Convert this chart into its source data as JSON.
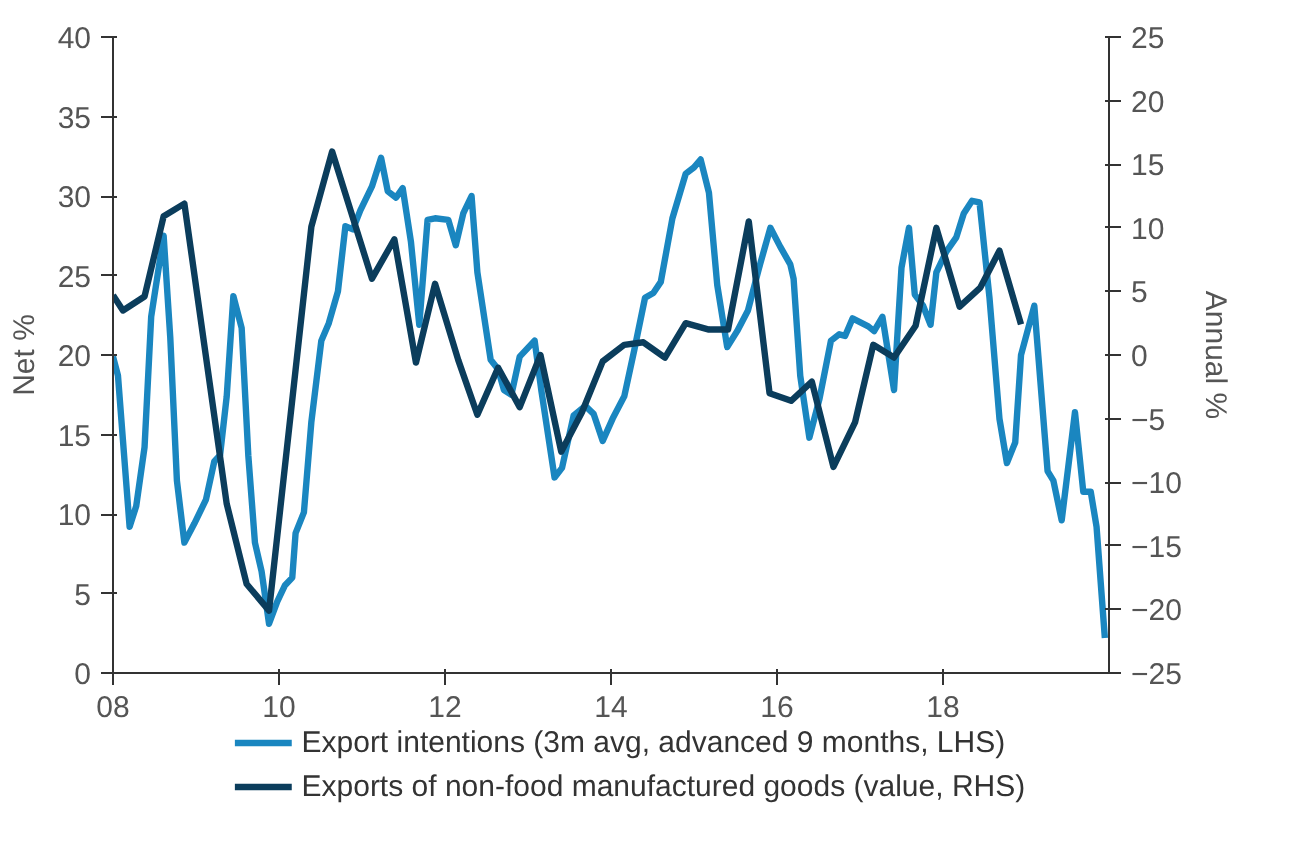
{
  "chart_data": {
    "type": "line",
    "xlabel": null,
    "ylabel": "Net %",
    "y2label": "Annual %",
    "xlim": [
      2008,
      2020
    ],
    "xticks": [
      {
        "value": 2008,
        "label": "08"
      },
      {
        "value": 2010,
        "label": "10"
      },
      {
        "value": 2012,
        "label": "12"
      },
      {
        "value": 2014,
        "label": "14"
      },
      {
        "value": 2016,
        "label": "16"
      },
      {
        "value": 2018,
        "label": "18"
      }
    ],
    "ylim": [
      0,
      40
    ],
    "yticks": [
      0,
      5,
      10,
      15,
      20,
      25,
      30,
      35,
      40
    ],
    "y2lim": [
      -25,
      25
    ],
    "y2ticks": [
      -25,
      -20,
      -15,
      -10,
      -5,
      0,
      5,
      10,
      15,
      20,
      25
    ],
    "grid": false,
    "legend": "bottom",
    "line_style": "solid",
    "marker": "none",
    "series": [
      {
        "name": "Export intentions (3m avg, advanced 9 months, LHS)",
        "color": "#1a86c0",
        "x": [
          2008.0,
          2008.06,
          2008.2,
          2008.28,
          2008.38,
          2008.46,
          2008.61,
          2008.69,
          2008.77,
          2008.86,
          2008.98,
          2009.12,
          2009.22,
          2009.29,
          2009.37,
          2009.45,
          2009.55,
          2009.63,
          2009.71,
          2009.79,
          2009.88,
          2009.98,
          2010.07,
          2010.16,
          2010.2,
          2010.3,
          2010.39,
          2010.51,
          2010.6,
          2010.71,
          2010.8,
          2010.89,
          2010.98,
          2011.12,
          2011.23,
          2011.31,
          2011.41,
          2011.49,
          2011.59,
          2011.69,
          2011.79,
          2011.88,
          2012.04,
          2012.13,
          2012.22,
          2012.32,
          2012.39,
          2012.55,
          2012.64,
          2012.71,
          2012.8,
          2012.9,
          2013.08,
          2013.16,
          2013.32,
          2013.41,
          2013.55,
          2013.69,
          2013.79,
          2013.9,
          2014.02,
          2014.16,
          2014.28,
          2014.41,
          2014.51,
          2014.6,
          2014.74,
          2014.9,
          2015.0,
          2015.08,
          2015.18,
          2015.28,
          2015.4,
          2015.52,
          2015.65,
          2015.78,
          2015.92,
          2016.04,
          2016.16,
          2016.2,
          2016.28,
          2016.39,
          2016.51,
          2016.65,
          2016.75,
          2016.82,
          2016.91,
          2017.1,
          2017.17,
          2017.27,
          2017.41,
          2017.5,
          2017.59,
          2017.66,
          2017.76,
          2017.85,
          2017.92,
          2018.04,
          2018.16,
          2018.25,
          2018.35,
          2018.44,
          2018.56,
          2018.68,
          2018.77,
          2018.87,
          2018.94,
          2019.1,
          2019.26,
          2019.33,
          2019.43,
          2019.59,
          2019.69,
          2019.78,
          2019.85,
          2019.95
        ],
        "values": [
          19.9,
          18.7,
          9.2,
          10.5,
          14.2,
          22.4,
          27.5,
          21.1,
          12.1,
          8.2,
          9.4,
          10.9,
          13.3,
          13.7,
          17.4,
          23.7,
          21.7,
          13.7,
          8.2,
          6.4,
          3.1,
          4.5,
          5.5,
          6,
          8.8,
          10.1,
          15.8,
          20.9,
          22,
          24,
          28.1,
          27.9,
          29.1,
          30.6,
          32.4,
          30.3,
          29.9,
          30.5,
          27.1,
          21.9,
          28.5,
          28.6,
          28.5,
          26.9,
          28.9,
          30,
          25.2,
          19.7,
          19.1,
          17.8,
          17.5,
          19.9,
          20.9,
          17.8,
          12.3,
          12.9,
          16.2,
          16.8,
          16.3,
          14.6,
          16,
          17.4,
          20.3,
          23.6,
          23.9,
          24.6,
          28.6,
          31.4,
          31.8,
          32.3,
          30.2,
          24.4,
          20.5,
          21.5,
          22.8,
          25.4,
          28,
          26.8,
          25.7,
          24.8,
          18.7,
          14.8,
          17.2,
          20.9,
          21.3,
          21.2,
          22.3,
          21.8,
          21.5,
          22.4,
          17.8,
          25.5,
          28,
          23.8,
          23.1,
          21.9,
          25.2,
          26.5,
          27.4,
          28.9,
          29.7,
          29.6,
          23.6,
          16,
          13.2,
          14.5,
          20,
          23.1,
          12.7,
          12.1,
          9.6,
          16.4,
          11.4,
          11.4,
          9.2,
          2.2
        ]
      },
      {
        "name": "Exports of non-food manufactured goods (value, RHS)",
        "color": "#0b3d5c",
        "axis": "y2",
        "x": [
          2008.0,
          2008.12,
          2008.38,
          2008.61,
          2008.86,
          2009.37,
          2009.61,
          2009.88,
          2010.39,
          2010.64,
          2011.12,
          2011.39,
          2011.65,
          2011.88,
          2012.16,
          2012.39,
          2012.64,
          2012.9,
          2013.15,
          2013.4,
          2013.65,
          2013.9,
          2014.16,
          2014.39,
          2014.65,
          2014.9,
          2015.18,
          2015.41,
          2015.66,
          2015.91,
          2016.17,
          2016.42,
          2016.68,
          2016.94,
          2017.16,
          2017.41,
          2017.67,
          2017.92,
          2018.2,
          2018.45,
          2018.68,
          2018.94
        ],
        "values": [
          4.7,
          3.5,
          4.6,
          10.9,
          11.9,
          -11.7,
          -18,
          -20.1,
          10.1,
          16,
          6,
          9.1,
          -0.6,
          5.6,
          -0.4,
          -4.7,
          -1,
          -4.1,
          0,
          -7.6,
          -4.5,
          -0.5,
          0.8,
          1,
          -0.2,
          2.5,
          2,
          2,
          10.5,
          -3,
          -3.6,
          -2.1,
          -8.8,
          -5.3,
          0.8,
          -0.2,
          2.3,
          10,
          3.8,
          5.3,
          8.2,
          2.4
        ]
      }
    ]
  }
}
